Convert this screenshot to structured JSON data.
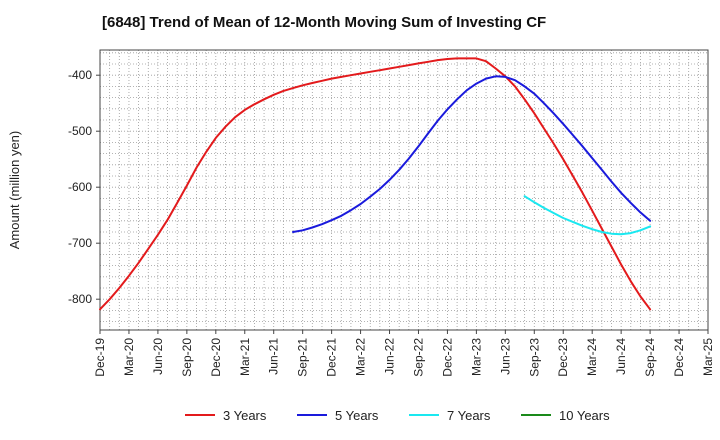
{
  "chart_data": {
    "type": "line",
    "title": "[6848]  Trend of Mean of 12-Month Moving Sum of Investing CF",
    "xlabel": "",
    "ylabel": "Amount (million yen)",
    "ylim": [
      -855,
      -355
    ],
    "yticks": [
      -400,
      -500,
      -600,
      -700,
      -800
    ],
    "grid": true,
    "legend_position": "bottom",
    "x_tick_labels": [
      "Dec-19",
      "Mar-20",
      "Jun-20",
      "Sep-20",
      "Dec-20",
      "Mar-21",
      "Jun-21",
      "Sep-21",
      "Dec-21",
      "Mar-22",
      "Jun-22",
      "Sep-22",
      "Dec-22",
      "Mar-23",
      "Jun-23",
      "Sep-23",
      "Dec-23",
      "Mar-24",
      "Jun-24",
      "Sep-24",
      "Dec-24",
      "Mar-25"
    ],
    "series": [
      {
        "name": "3 Years",
        "color": "#e31a1c",
        "x": [
          "Dec-19",
          "Jan-20",
          "Feb-20",
          "Mar-20",
          "Apr-20",
          "May-20",
          "Jun-20",
          "Jul-20",
          "Aug-20",
          "Sep-20",
          "Oct-20",
          "Nov-20",
          "Dec-20",
          "Jan-21",
          "Feb-21",
          "Mar-21",
          "Apr-21",
          "May-21",
          "Jun-21",
          "Jul-21",
          "Aug-21",
          "Sep-21",
          "Oct-21",
          "Nov-21",
          "Dec-21",
          "Jan-22",
          "Feb-22",
          "Mar-22",
          "Apr-22",
          "May-22",
          "Jun-22",
          "Jul-22",
          "Aug-22",
          "Sep-22",
          "Oct-22",
          "Nov-22",
          "Dec-22",
          "Jan-23",
          "Feb-23",
          "Mar-23",
          "Apr-23",
          "May-23",
          "Jun-23",
          "Jul-23",
          "Aug-23",
          "Sep-23",
          "Oct-23",
          "Nov-23",
          "Dec-23",
          "Jan-24",
          "Feb-24",
          "Mar-24",
          "Apr-24",
          "May-24",
          "Jun-24",
          "Jul-24",
          "Aug-24",
          "Sep-24"
        ],
        "values": [
          -818,
          -800,
          -780,
          -758,
          -735,
          -710,
          -685,
          -658,
          -628,
          -597,
          -565,
          -537,
          -512,
          -492,
          -475,
          -462,
          -452,
          -443,
          -435,
          -428,
          -423,
          -418,
          -414,
          -410,
          -406,
          -403,
          -400,
          -397,
          -394,
          -391,
          -388,
          -385,
          -382,
          -379,
          -376,
          -373,
          -371,
          -370,
          -370,
          -370,
          -375,
          -388,
          -402,
          -420,
          -443,
          -468,
          -495,
          -522,
          -550,
          -580,
          -610,
          -642,
          -674,
          -706,
          -738,
          -768,
          -795,
          -818
        ]
      },
      {
        "name": "5 Years",
        "color": "#1a1adc",
        "x": [
          "Aug-21",
          "Sep-21",
          "Oct-21",
          "Nov-21",
          "Dec-21",
          "Jan-22",
          "Feb-22",
          "Mar-22",
          "Apr-22",
          "May-22",
          "Jun-22",
          "Jul-22",
          "Aug-22",
          "Sep-22",
          "Oct-22",
          "Nov-22",
          "Dec-22",
          "Jan-23",
          "Feb-23",
          "Mar-23",
          "Apr-23",
          "May-23",
          "Jun-23",
          "Jul-23",
          "Aug-23",
          "Sep-23",
          "Oct-23",
          "Nov-23",
          "Dec-23",
          "Jan-24",
          "Feb-24",
          "Mar-24",
          "Apr-24",
          "May-24",
          "Jun-24",
          "Jul-24",
          "Aug-24",
          "Sep-24"
        ],
        "values": [
          -680,
          -677,
          -672,
          -666,
          -659,
          -651,
          -641,
          -630,
          -617,
          -603,
          -587,
          -569,
          -549,
          -527,
          -504,
          -481,
          -461,
          -443,
          -427,
          -415,
          -406,
          -402,
          -403,
          -409,
          -420,
          -433,
          -450,
          -468,
          -487,
          -507,
          -527,
          -548,
          -569,
          -590,
          -610,
          -628,
          -645,
          -660
        ]
      },
      {
        "name": "7 Years",
        "color": "#1ae8f0",
        "x": [
          "Aug-23",
          "Sep-23",
          "Oct-23",
          "Nov-23",
          "Dec-23",
          "Jan-24",
          "Feb-24",
          "Mar-24",
          "Apr-24",
          "May-24",
          "Jun-24",
          "Jul-24",
          "Aug-24",
          "Sep-24"
        ],
        "values": [
          -616,
          -627,
          -637,
          -646,
          -655,
          -662,
          -669,
          -675,
          -680,
          -683,
          -684,
          -682,
          -677,
          -670
        ]
      },
      {
        "name": "10 Years",
        "color": "#1a8a1a",
        "x": [],
        "values": []
      }
    ]
  }
}
